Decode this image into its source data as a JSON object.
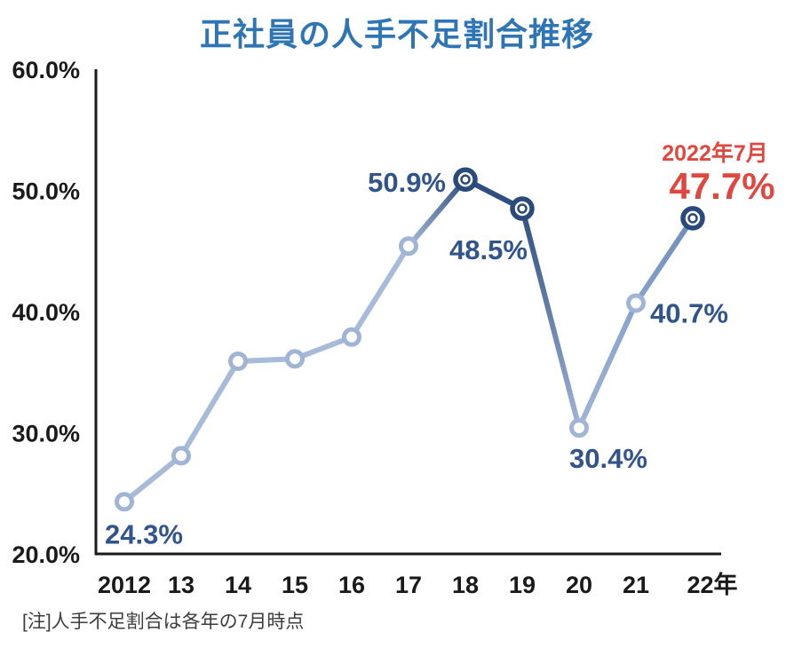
{
  "page": {
    "title": "正社員の人手不足割合推移",
    "note": "[注]人手不足割合は各年の7月時点"
  },
  "colors": {
    "title_blue": "#2E75B6",
    "axis_black": "#1a1a1a",
    "label_dark_blue": "#31548C",
    "highlight_red": "#E2473F",
    "line_dark": "#2F4F80",
    "line_light": "#A7BBD9",
    "marker_light_ring": "#A0B5D6",
    "marker_dark_ring": "#294A7B",
    "note_gray": "#3d3d3d"
  },
  "chart_data": {
    "type": "line",
    "title": "正社員の人手不足割合推移",
    "xlabel": "",
    "ylabel": "",
    "categories": [
      "2012",
      "13",
      "14",
      "15",
      "16",
      "17",
      "18",
      "19",
      "20",
      "21",
      "22年"
    ],
    "series": [
      {
        "name": "正社員の人手不足割合",
        "values": [
          24.3,
          28.1,
          35.9,
          36.1,
          37.9,
          45.4,
          50.9,
          48.5,
          30.4,
          40.7,
          47.7
        ]
      }
    ],
    "ylim": [
      20,
      60
    ],
    "yticks": [
      {
        "value": 20,
        "label": "20.0%"
      },
      {
        "value": 30,
        "label": "30.0%"
      },
      {
        "value": 40,
        "label": "40.0%"
      },
      {
        "value": 50,
        "label": "50.0%"
      },
      {
        "value": 60,
        "label": "60.0%"
      }
    ],
    "grid": false,
    "legend_position": "none",
    "point_line_colors": [
      "#A7BBD9",
      "#A7BBD9",
      "#A7BBD9",
      "#A7BBD9",
      "#A7BBD9",
      "#A7BBD9",
      "#2F4F80",
      "#2F4F80",
      "#9FB4D6",
      "#87A2CA",
      "#6E8DBB"
    ],
    "marker_styles": [
      "light",
      "light",
      "light",
      "light",
      "light",
      "light",
      "dark",
      "dark",
      "light",
      "light",
      "dark"
    ],
    "point_labels": [
      {
        "index": 0,
        "text": "24.3%"
      },
      {
        "index": 6,
        "text": "50.9%"
      },
      {
        "index": 7,
        "text": "48.5%"
      },
      {
        "index": 8,
        "text": "30.4%"
      },
      {
        "index": 9,
        "text": "40.7%"
      }
    ],
    "annotation": {
      "index": 10,
      "date_text": "2022年7月",
      "value_text": "47.7%"
    }
  }
}
